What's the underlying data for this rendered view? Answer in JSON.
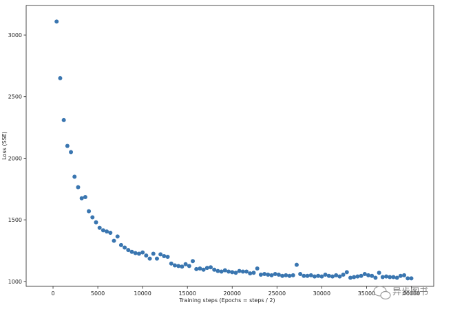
{
  "chart_data": {
    "type": "scatter",
    "title": "",
    "xlabel": "Training steps (Epochs = steps / 2)",
    "ylabel": "Loss (SSE)",
    "xlim": [
      -3000,
      42500
    ],
    "ylim": [
      960,
      3240
    ],
    "xticks": [
      0,
      5000,
      10000,
      15000,
      20000,
      25000,
      30000,
      35000,
      40000
    ],
    "xtick_labels": [
      "0",
      "5000",
      "10000",
      "15000",
      "20000",
      "25000",
      "30000",
      "35000",
      "40000"
    ],
    "yticks": [
      1000,
      1500,
      2000,
      2500,
      3000
    ],
    "ytick_labels": [
      "1000",
      "1500",
      "2000",
      "2500",
      "3000"
    ],
    "grid": false,
    "legend": "none",
    "point_color": "#3a76b0",
    "series": [
      {
        "x": [
          400,
          800,
          1200,
          1600,
          2000,
          2400,
          2800,
          3200,
          3600,
          4000,
          4400,
          4800,
          5200,
          5600,
          6000,
          6400,
          6800,
          7200,
          7600,
          8000,
          8400,
          8800,
          9200,
          9600,
          10000,
          10400,
          10800,
          11200,
          11600,
          12000,
          12400,
          12800,
          13200,
          13600,
          14000,
          14400,
          14800,
          15200,
          15600,
          16000,
          16400,
          16800,
          17200,
          17600,
          18000,
          18400,
          18800,
          19200,
          19600,
          20000,
          20400,
          20800,
          21200,
          21600,
          22000,
          22400,
          22800,
          23200,
          23600,
          24000,
          24400,
          24800,
          25200,
          25600,
          26000,
          26400,
          26800,
          27200,
          27600,
          28000,
          28400,
          28800,
          29200,
          29600,
          30000,
          30400,
          30800,
          31200,
          31600,
          32000,
          32400,
          32800,
          33200,
          33600,
          34000,
          34400,
          34800,
          35200,
          35600,
          36000,
          36400,
          36800,
          37200,
          37600,
          38000,
          38400,
          38800,
          39200,
          39600,
          40000
        ],
        "y": [
          3110,
          2650,
          2310,
          2100,
          2050,
          1850,
          1765,
          1675,
          1685,
          1570,
          1520,
          1480,
          1435,
          1415,
          1405,
          1395,
          1330,
          1365,
          1295,
          1275,
          1255,
          1240,
          1230,
          1225,
          1235,
          1210,
          1185,
          1225,
          1185,
          1220,
          1205,
          1200,
          1145,
          1130,
          1125,
          1120,
          1140,
          1125,
          1165,
          1100,
          1105,
          1095,
          1110,
          1115,
          1095,
          1085,
          1080,
          1090,
          1080,
          1075,
          1070,
          1085,
          1080,
          1080,
          1065,
          1070,
          1105,
          1055,
          1060,
          1055,
          1050,
          1060,
          1055,
          1045,
          1050,
          1045,
          1050,
          1135,
          1060,
          1045,
          1045,
          1050,
          1040,
          1045,
          1040,
          1055,
          1045,
          1040,
          1050,
          1040,
          1055,
          1075,
          1030,
          1035,
          1040,
          1045,
          1060,
          1050,
          1045,
          1030,
          1070,
          1035,
          1040,
          1035,
          1035,
          1030,
          1045,
          1050,
          1025,
          1025
        ]
      }
    ]
  },
  "watermark": {
    "text": "异步图书",
    "icon": "wechat-logo-icon"
  }
}
